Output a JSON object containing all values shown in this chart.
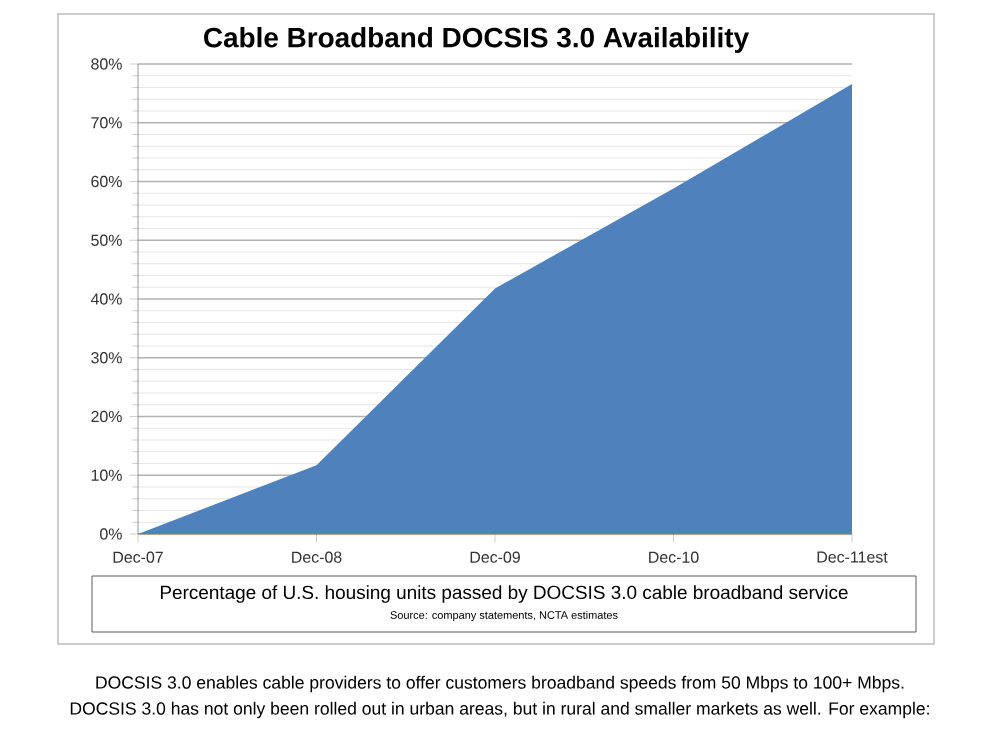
{
  "chart_data": {
    "type": "area",
    "title": "Cable Broadband DOCSIS 3.0 Availability",
    "categories": [
      "Dec-07",
      "Dec-08",
      "Dec-09",
      "Dec-10",
      "Dec-11est"
    ],
    "values": [
      0,
      11.7,
      41.8,
      58.8,
      76.6
    ],
    "color": "#4f81bd",
    "ylim": [
      0,
      80
    ],
    "yticks": [
      {
        "value": 0,
        "label": "0%"
      },
      {
        "value": 10,
        "label": "10%"
      },
      {
        "value": 20,
        "label": "20%"
      },
      {
        "value": 30,
        "label": "30%"
      },
      {
        "value": 40,
        "label": "40%"
      },
      {
        "value": 50,
        "label": "50%"
      },
      {
        "value": 60,
        "label": "60%"
      },
      {
        "value": 70,
        "label": "70%"
      },
      {
        "value": 80,
        "label": "80%"
      }
    ],
    "grid": "y",
    "annotations": [
      "Percentage of U.S. housing units passed by DOCSIS 3.0 cable broadband service",
      "Source:  company statements, NCTA estimates",
      "DOCSIS 3.0 enables cable providers to offer customers broadband speeds from 50 Mbps to 100+ Mbps.",
      "DOCSIS 3.0 has not only been rolled out in urban areas, but in rural and smaller markets as well.  For example:"
    ]
  }
}
